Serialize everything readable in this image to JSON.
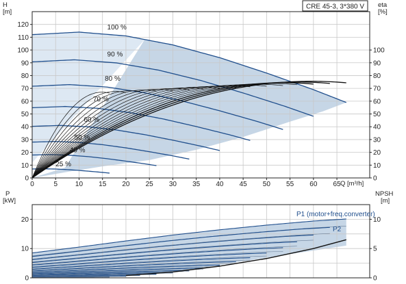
{
  "chart_data": [
    {
      "type": "line",
      "name": "performance",
      "title": "CRE 45-3, 3*380 V",
      "ylabel_left": "H",
      "ylabel_left_unit": "[m]",
      "ylabel_right": "eta",
      "ylabel_right_unit": "[%]",
      "xlabel": "Q [m³/h]",
      "xlim": [
        0,
        72
      ],
      "ylim": [
        0,
        130
      ],
      "yticks_left": [
        0,
        10,
        20,
        30,
        40,
        50,
        60,
        70,
        80,
        90,
        100,
        110,
        120
      ],
      "yticks_right": [
        0,
        10,
        20,
        30,
        40,
        50,
        60,
        70,
        80,
        90,
        100
      ],
      "xticks": [
        0,
        5,
        10,
        15,
        20,
        25,
        30,
        35,
        40,
        45,
        50,
        55,
        60,
        65
      ],
      "grid": true,
      "colors": {
        "curve": "#1f4e8c",
        "band": "#c6d6e6",
        "band_light": "#dde8f3",
        "eta": "#111111"
      },
      "speed_curves": [
        {
          "label": "100 %",
          "pct": 1.0
        },
        {
          "label": "90 %",
          "pct": 0.9
        },
        {
          "label": "80 %",
          "pct": 0.8
        },
        {
          "label": "70 %",
          "pct": 0.7
        },
        {
          "label": "60 %",
          "pct": 0.6
        },
        {
          "label": "50 %",
          "pct": 0.5
        },
        {
          "label": "40 %",
          "pct": 0.4
        },
        {
          "label": "25 %",
          "pct": 0.25
        }
      ],
      "full_speed_curve": {
        "q": [
          0,
          10,
          20,
          30,
          40,
          50,
          60,
          67
        ],
        "h": [
          112,
          114,
          111,
          104,
          94,
          82,
          69,
          59
        ]
      }
    },
    {
      "type": "line",
      "name": "power-npsh",
      "ylabel_left": "P",
      "ylabel_left_unit": "[kW]",
      "ylabel_right": "NPSH",
      "ylabel_right_unit": "[m]",
      "xlim": [
        0,
        72
      ],
      "ylim_left": [
        0,
        25
      ],
      "yticks_left": [
        0,
        10,
        20
      ],
      "ylim_right": [
        0,
        12.5
      ],
      "yticks_right": [
        0,
        5,
        10
      ],
      "grid": true,
      "p1_label": "P1 (motor+freq.converter)",
      "p2_label": "P2",
      "p1_full": {
        "q": [
          0,
          10,
          20,
          30,
          40,
          50,
          60,
          67
        ],
        "p": [
          8.5,
          10.5,
          12.6,
          14.6,
          16.4,
          18.0,
          19.4,
          20.1
        ]
      },
      "npsh": {
        "q": [
          20,
          30,
          40,
          50,
          60,
          67
        ],
        "npsh": [
          0.4,
          1.0,
          2.0,
          3.3,
          5.0,
          6.5
        ]
      }
    }
  ]
}
